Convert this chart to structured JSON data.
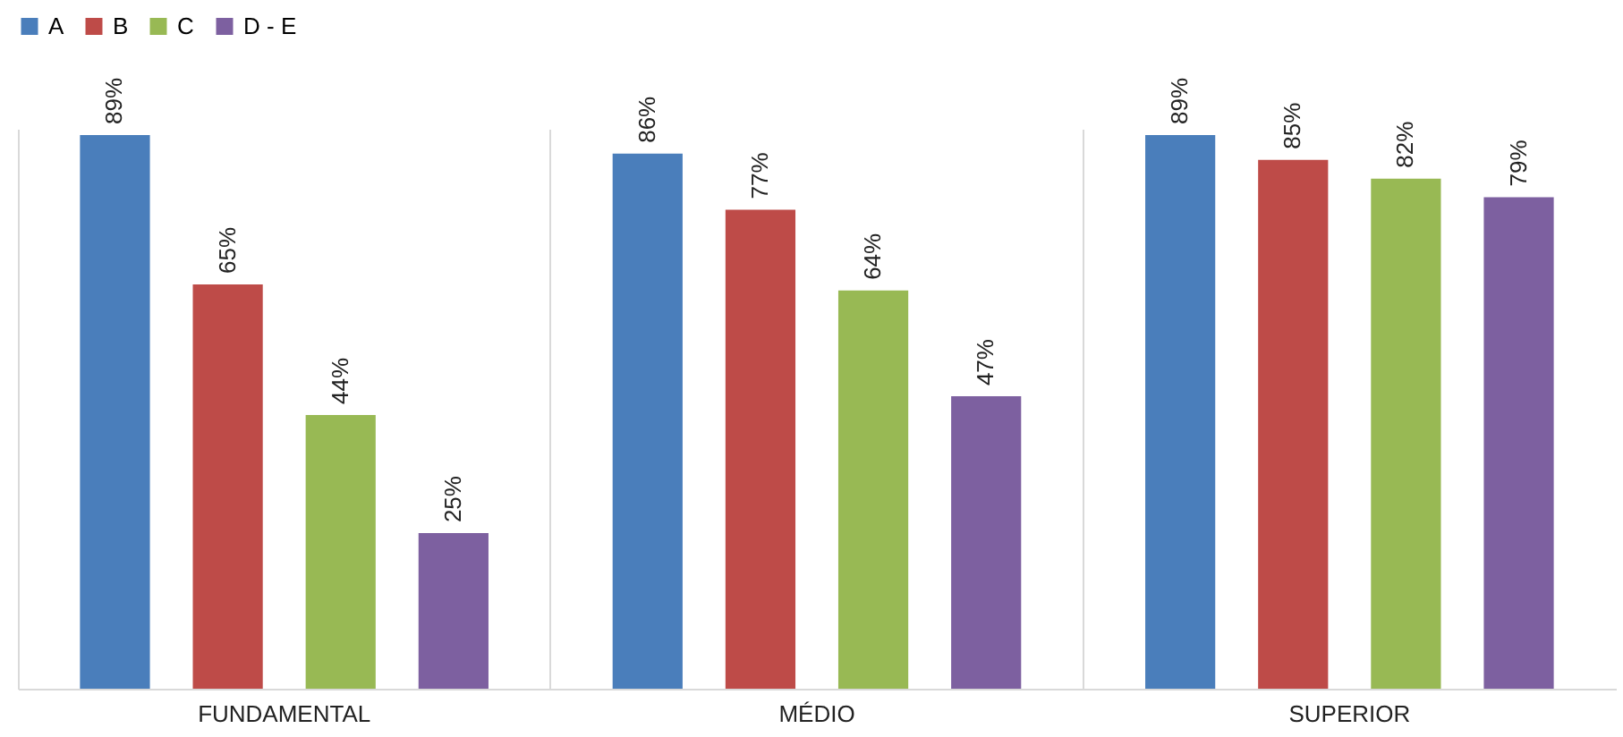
{
  "chart_data": {
    "type": "bar",
    "categories": [
      "FUNDAMENTAL",
      "MÉDIO",
      "SUPERIOR"
    ],
    "series": [
      {
        "name": "A",
        "color": "#4a7ebb",
        "values": [
          89,
          86,
          89
        ],
        "value_labels": [
          "89%",
          "86%",
          "89%"
        ]
      },
      {
        "name": "B",
        "color": "#be4b48",
        "values": [
          65,
          77,
          85
        ],
        "value_labels": [
          "65%",
          "77%",
          "85%"
        ]
      },
      {
        "name": "C",
        "color": "#98b954",
        "values": [
          44,
          64,
          82
        ],
        "value_labels": [
          "44%",
          "64%",
          "82%"
        ]
      },
      {
        "name": "D - E",
        "color": "#7d60a0",
        "values": [
          25,
          47,
          79
        ],
        "value_labels": [
          "25%",
          "47%",
          "79%"
        ]
      }
    ],
    "legend": "top",
    "grid": "x"
  }
}
